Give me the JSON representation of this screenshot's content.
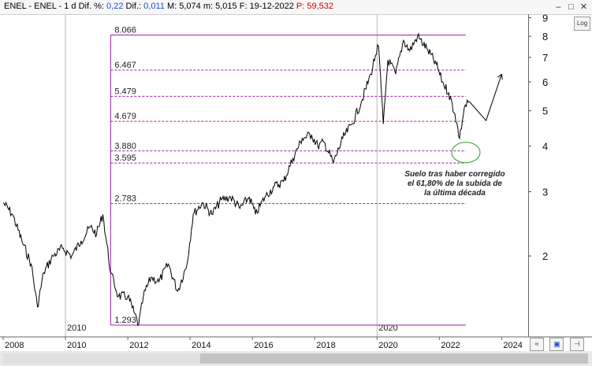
{
  "header": {
    "symbol": "ENEL - ENEL -",
    "period": "1 d",
    "dif_pct_label": "Dif. %:",
    "dif_pct_value": "0,22",
    "dif_label": "Dif.:",
    "dif_value": "0,011",
    "max_label": "M:",
    "max_value": "5,074",
    "min_label": "m:",
    "min_value": "5,015",
    "date_label": "F:",
    "date_value": "19-12-2022",
    "price_label": "P:",
    "price_value": "59,532"
  },
  "controls": {
    "log_button": "Log",
    "minimize": "–",
    "maximize": "□",
    "close": "✕"
  },
  "colors": {
    "fib": "#a020a0",
    "price": "#000000",
    "ellipse": "#2e9e2e",
    "accent_blue": "#1f4fd0",
    "accent_red": "#d00000"
  },
  "chart_data": {
    "type": "line",
    "series_name": "",
    "scale": "log",
    "ylim": [
      1.2,
      9.2
    ],
    "xlim": [
      2008,
      2024.8
    ],
    "y_ticks": [
      "9",
      "8",
      "7",
      "6",
      "5",
      "4",
      "3",
      "2"
    ],
    "x_ticks": [
      "2008",
      "2010",
      "2012",
      "2014",
      "2016",
      "2018",
      "2020",
      "2022",
      "2024"
    ],
    "decade_markers": [
      "2010",
      "2020"
    ],
    "series": [
      {
        "name": "",
        "x": [
          2008.0,
          2008.3,
          2008.6,
          2008.9,
          2009.1,
          2009.3,
          2009.6,
          2009.9,
          2010.2,
          2010.5,
          2010.8,
          2011.0,
          2011.2,
          2011.45,
          2011.7,
          2012.0,
          2012.2,
          2012.35,
          2012.5,
          2012.75,
          2013.0,
          2013.3,
          2013.6,
          2013.9,
          2014.1,
          2014.4,
          2014.7,
          2015.0,
          2015.3,
          2015.6,
          2015.9,
          2016.1,
          2016.4,
          2016.7,
          2017.0,
          2017.3,
          2017.6,
          2017.9,
          2018.1,
          2018.3,
          2018.6,
          2018.9,
          2019.2,
          2019.5,
          2019.8,
          2019.95,
          2020.05,
          2020.2,
          2020.35,
          2020.6,
          2020.85,
          2021.05,
          2021.3,
          2021.6,
          2021.9,
          2022.1,
          2022.3,
          2022.5,
          2022.65,
          2022.8,
          2022.96
        ],
        "values": [
          2.8,
          2.6,
          2.2,
          1.9,
          1.45,
          1.8,
          2.0,
          2.1,
          2.0,
          2.2,
          2.4,
          2.3,
          2.6,
          1.8,
          1.55,
          1.55,
          1.4,
          1.293,
          1.55,
          1.75,
          1.7,
          1.9,
          1.6,
          1.9,
          2.6,
          2.8,
          2.6,
          2.85,
          2.9,
          2.7,
          2.9,
          2.6,
          2.9,
          3.1,
          3.2,
          3.7,
          4.2,
          4.3,
          4.0,
          4.1,
          3.6,
          4.2,
          4.6,
          5.3,
          6.3,
          7.1,
          7.5,
          4.6,
          6.9,
          6.3,
          7.8,
          7.3,
          8.0,
          7.4,
          6.7,
          6.0,
          5.6,
          4.9,
          4.2,
          5.1,
          5.3
        ]
      }
    ],
    "projection": {
      "x": [
        2022.96,
        2023.5,
        2024.0
      ],
      "values": [
        5.3,
        4.7,
        6.3
      ]
    },
    "fib_levels": [
      {
        "label": "8.066",
        "value": 8.066,
        "style": "solid"
      },
      {
        "label": "6.467",
        "value": 6.467,
        "style": "dashed"
      },
      {
        "label": "5.479",
        "value": 5.479,
        "style": "dashed"
      },
      {
        "label": "4.679",
        "value": 4.679,
        "style": "dashed"
      },
      {
        "label": "3.880",
        "value": 3.88,
        "style": "dashed"
      },
      {
        "label": "3.595",
        "value": 3.595,
        "style": "dashed"
      },
      {
        "label": "2.783",
        "value": 2.783,
        "style": "dashed"
      },
      {
        "label": "1.293",
        "value": 1.293,
        "style": "solid"
      }
    ],
    "fib_range_x": [
      2011.45,
      2022.85
    ],
    "annotation": {
      "lines": [
        "Suelo tras haber corregido",
        "el 61,80% de la subida de",
        "la última década"
      ],
      "target_x": 2022.75,
      "target_value": 3.9
    }
  }
}
